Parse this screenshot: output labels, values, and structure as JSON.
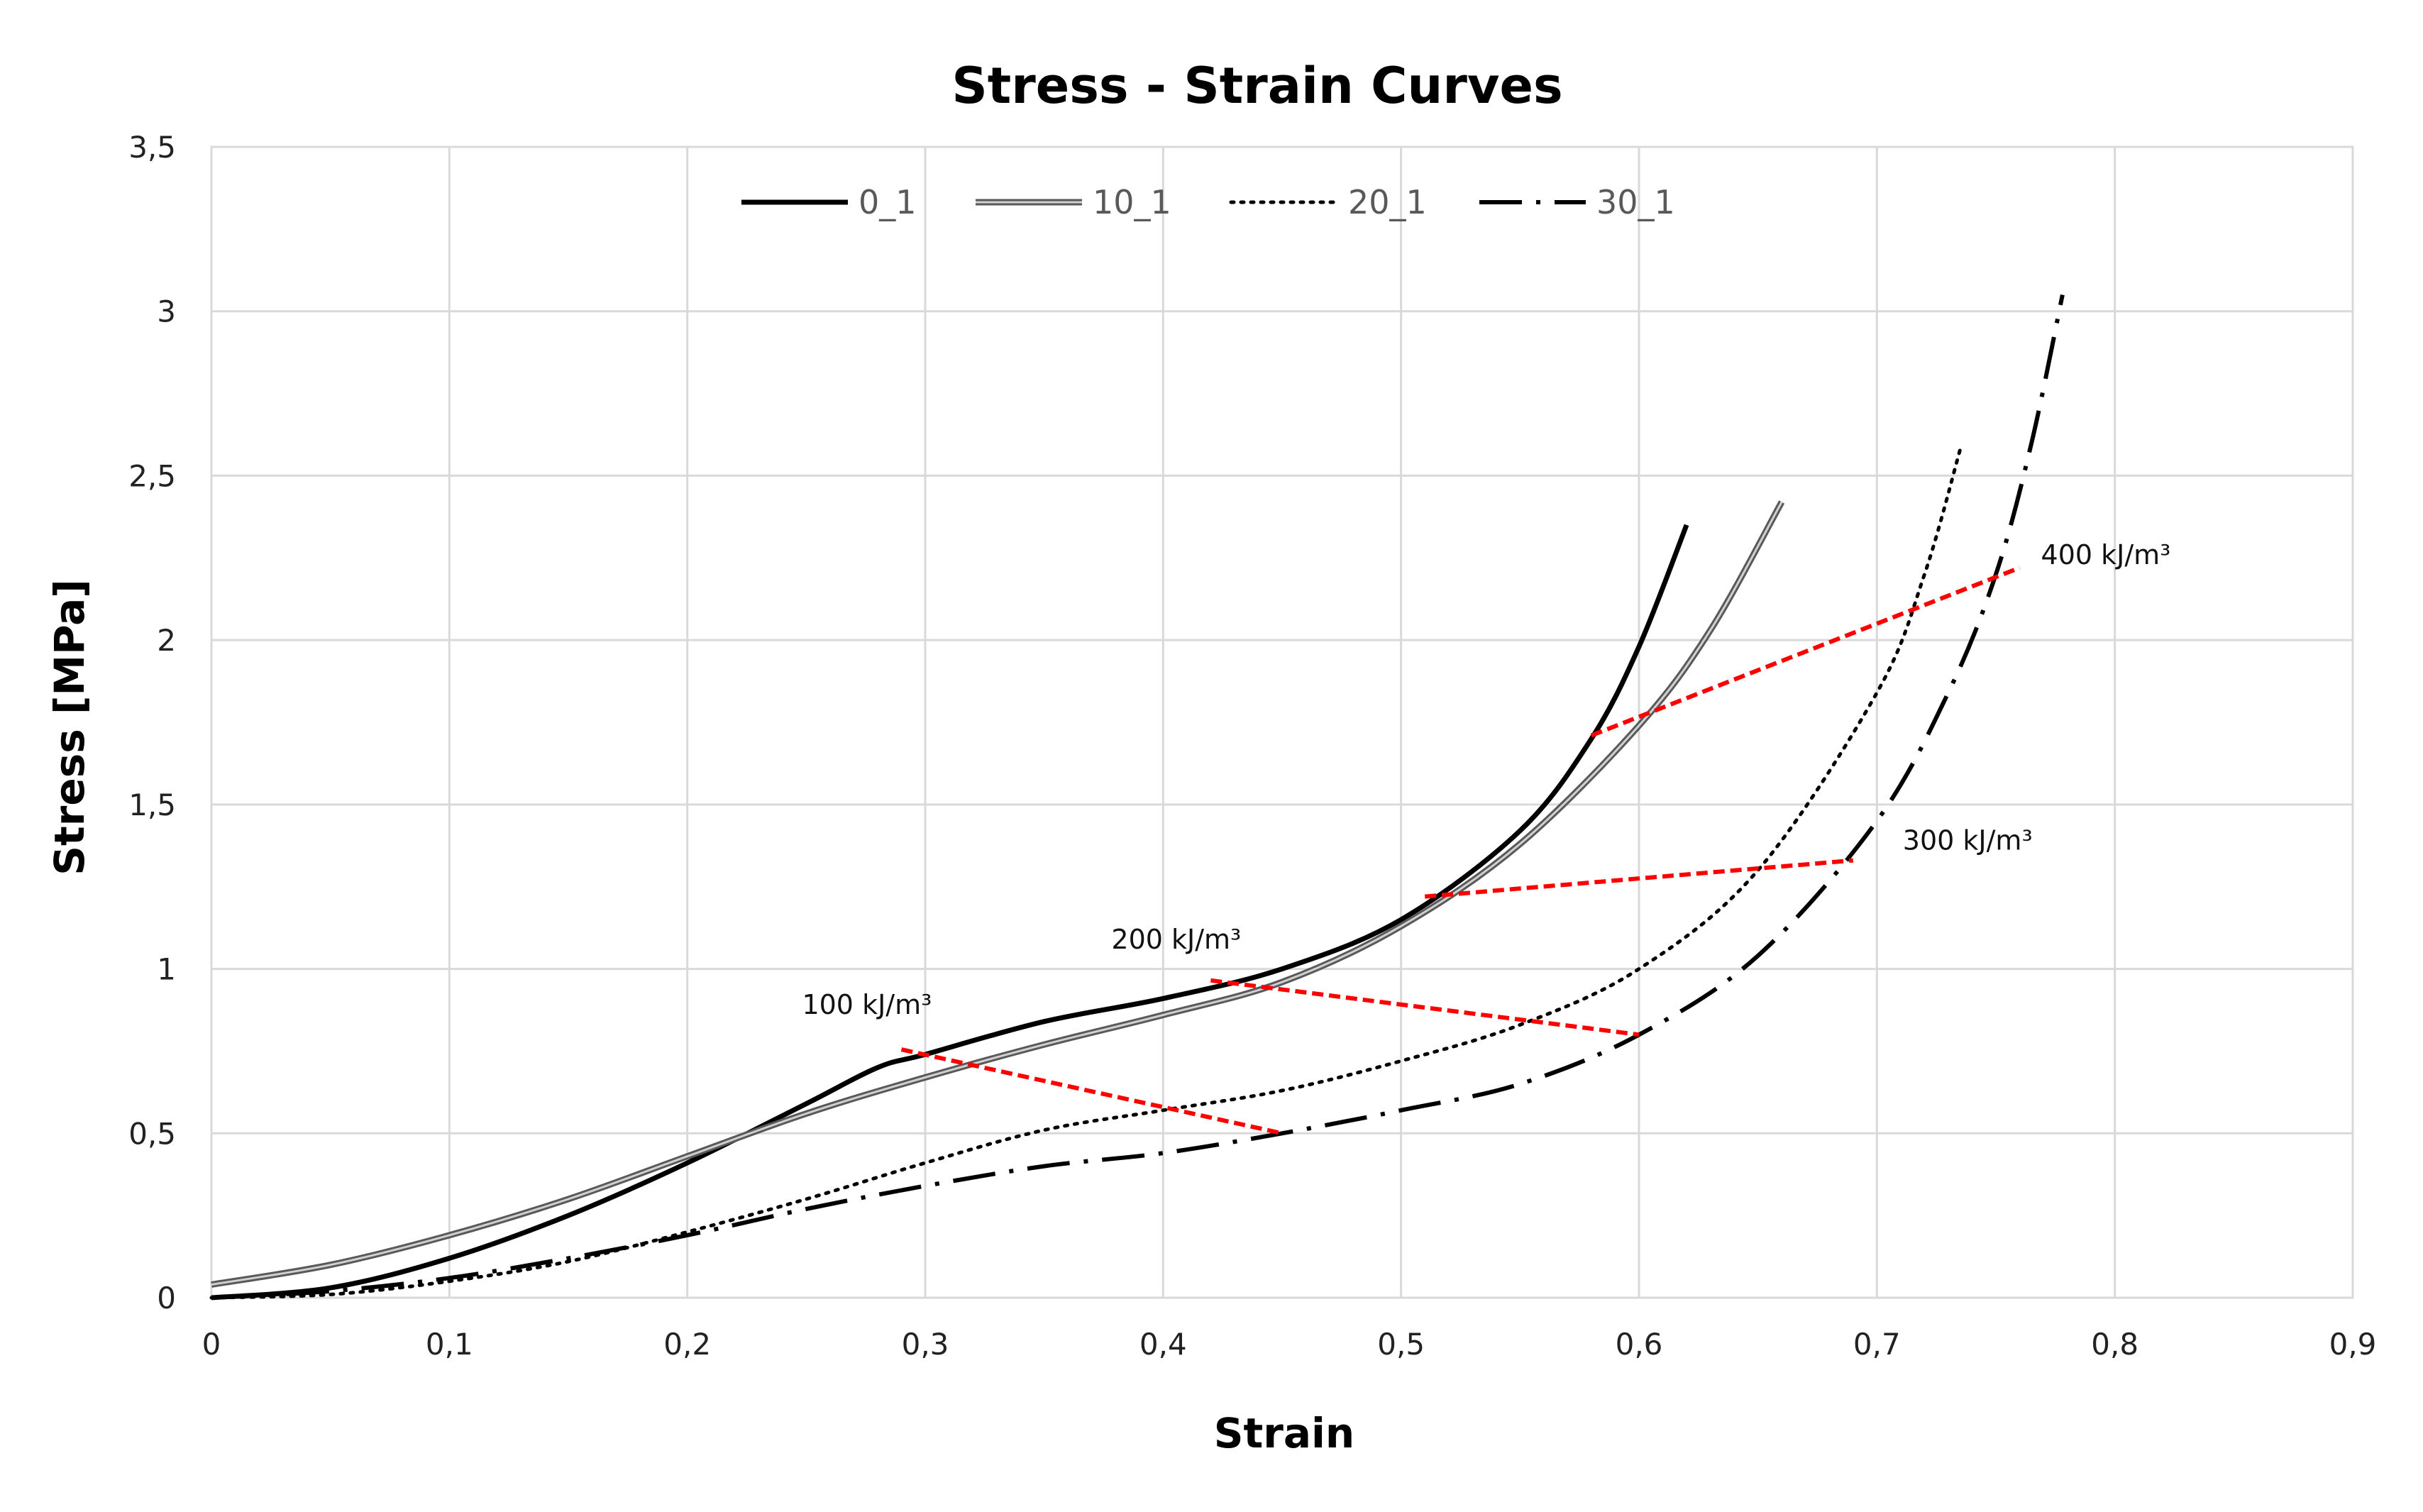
{
  "chart_data": {
    "type": "line",
    "title": "Stress - Strain Curves",
    "xlabel": "Strain",
    "ylabel": "Stress [MPa]",
    "xlim": [
      0,
      0.9
    ],
    "ylim": [
      0,
      3.5
    ],
    "grid": true,
    "legend_position": "top-center",
    "x_ticks": [
      {
        "value": 0,
        "label": "0"
      },
      {
        "value": 0.1,
        "label": "0,1"
      },
      {
        "value": 0.2,
        "label": "0,2"
      },
      {
        "value": 0.3,
        "label": "0,3"
      },
      {
        "value": 0.4,
        "label": "0,4"
      },
      {
        "value": 0.5,
        "label": "0,5"
      },
      {
        "value": 0.6,
        "label": "0,6"
      },
      {
        "value": 0.7,
        "label": "0,7"
      },
      {
        "value": 0.8,
        "label": "0,8"
      },
      {
        "value": 0.9,
        "label": "0,9"
      }
    ],
    "y_ticks": [
      {
        "value": 0,
        "label": "0"
      },
      {
        "value": 0.5,
        "label": "0,5"
      },
      {
        "value": 1,
        "label": "1"
      },
      {
        "value": 1.5,
        "label": "1,5"
      },
      {
        "value": 2,
        "label": "2"
      },
      {
        "value": 2.5,
        "label": "2,5"
      },
      {
        "value": 3,
        "label": "3"
      },
      {
        "value": 3.5,
        "label": "3,5"
      }
    ],
    "series": [
      {
        "name": "0_1",
        "style": "solid",
        "color": "#000000",
        "x": [
          0,
          0.05,
          0.1,
          0.15,
          0.2,
          0.25,
          0.28,
          0.3,
          0.35,
          0.4,
          0.45,
          0.5,
          0.55,
          0.58,
          0.6,
          0.62
        ],
        "y": [
          0,
          0.03,
          0.12,
          0.25,
          0.41,
          0.59,
          0.7,
          0.74,
          0.84,
          0.91,
          1.0,
          1.15,
          1.42,
          1.7,
          1.98,
          2.35
        ]
      },
      {
        "name": "10_1",
        "style": "double",
        "color": "#595959",
        "x": [
          0,
          0.05,
          0.1,
          0.15,
          0.2,
          0.25,
          0.3,
          0.35,
          0.4,
          0.45,
          0.5,
          0.55,
          0.6,
          0.63,
          0.66
        ],
        "y": [
          0.04,
          0.1,
          0.19,
          0.3,
          0.43,
          0.56,
          0.67,
          0.77,
          0.86,
          0.96,
          1.13,
          1.38,
          1.74,
          2.03,
          2.42
        ]
      },
      {
        "name": "20_1",
        "style": "dotted",
        "color": "#000000",
        "x": [
          0,
          0.05,
          0.1,
          0.15,
          0.2,
          0.25,
          0.3,
          0.35,
          0.4,
          0.45,
          0.5,
          0.55,
          0.6,
          0.65,
          0.7,
          0.72,
          0.735
        ],
        "y": [
          0,
          0.01,
          0.05,
          0.11,
          0.2,
          0.3,
          0.41,
          0.51,
          0.57,
          0.63,
          0.72,
          0.83,
          1.0,
          1.3,
          1.84,
          2.2,
          2.58
        ]
      },
      {
        "name": "30_1",
        "style": "dashdot",
        "color": "#000000",
        "x": [
          0,
          0.05,
          0.1,
          0.15,
          0.2,
          0.25,
          0.3,
          0.35,
          0.4,
          0.45,
          0.5,
          0.55,
          0.6,
          0.65,
          0.7,
          0.73,
          0.75,
          0.765,
          0.778
        ],
        "y": [
          0,
          0.02,
          0.06,
          0.12,
          0.19,
          0.27,
          0.34,
          0.4,
          0.44,
          0.5,
          0.57,
          0.65,
          0.8,
          1.04,
          1.45,
          1.84,
          2.2,
          2.6,
          3.05
        ]
      }
    ],
    "energy_lines": [
      {
        "label": "100 kJ/m³",
        "from": [
          0.29,
          0.755
        ],
        "to": [
          0.45,
          0.5
        ],
        "color": "#ff0000"
      },
      {
        "label": "200 kJ/m³",
        "from": [
          0.42,
          0.965
        ],
        "to": [
          0.6,
          0.8
        ],
        "color": "#ff0000"
      },
      {
        "label": "300 kJ/m³",
        "from": [
          0.51,
          1.22
        ],
        "to": [
          0.69,
          1.33
        ],
        "color": "#ff0000"
      },
      {
        "label": "400 kJ/m³",
        "from": [
          0.58,
          1.71
        ],
        "to": [
          0.76,
          2.22
        ],
        "color": "#ff0000"
      }
    ]
  }
}
